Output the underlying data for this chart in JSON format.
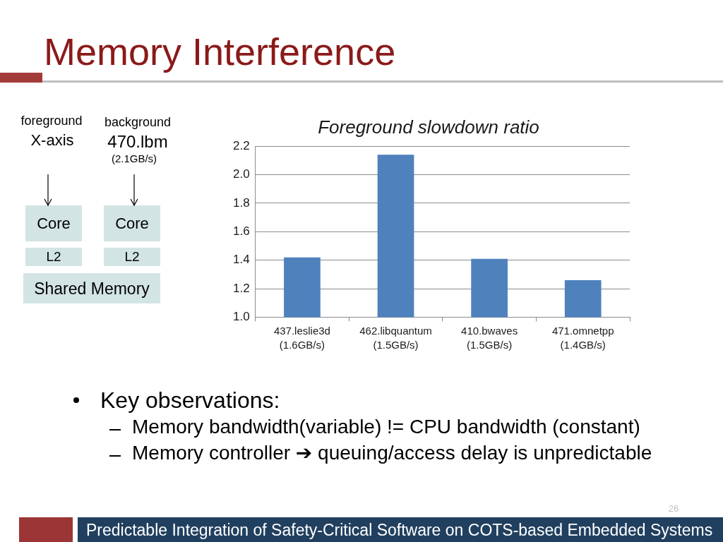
{
  "chart_data": {
    "type": "bar",
    "title": "Memory Interference",
    "subtitle": "Foreground slowdown ratio",
    "categories": [
      "437.leslie3d\n(1.6GB/s)",
      "462.libquantum\n(1.5GB/s)",
      "410.bwaves\n(1.5GB/s)",
      "471.omnetpp\n(1.4GB/s)"
    ],
    "values": [
      1.42,
      2.14,
      1.41,
      1.26
    ],
    "color": "#4f81bd",
    "ylim": [
      1,
      2.2
    ],
    "yticks": [
      {
        "value": 1,
        "label": "1.0"
      },
      1.2,
      1.4,
      1.6,
      1.8,
      {
        "value": 2,
        "label": "2.0"
      },
      2.2
    ],
    "grid": "y",
    "annotations": [
      "foreground",
      "X-axis",
      "background",
      "470.lbm",
      "(2.1GB/s)",
      "Core",
      "Core",
      "L2",
      "L2",
      "Shared Memory",
      "Key observations:",
      "Memory bandwidth(variable) != CPU bandwidth (constant)",
      "Memory controller ➔ queuing/access delay is unpredictable",
      "Predictable Integration of Safety-Critical Software on COTS-based Embedded Systems",
      "26"
    ]
  }
}
